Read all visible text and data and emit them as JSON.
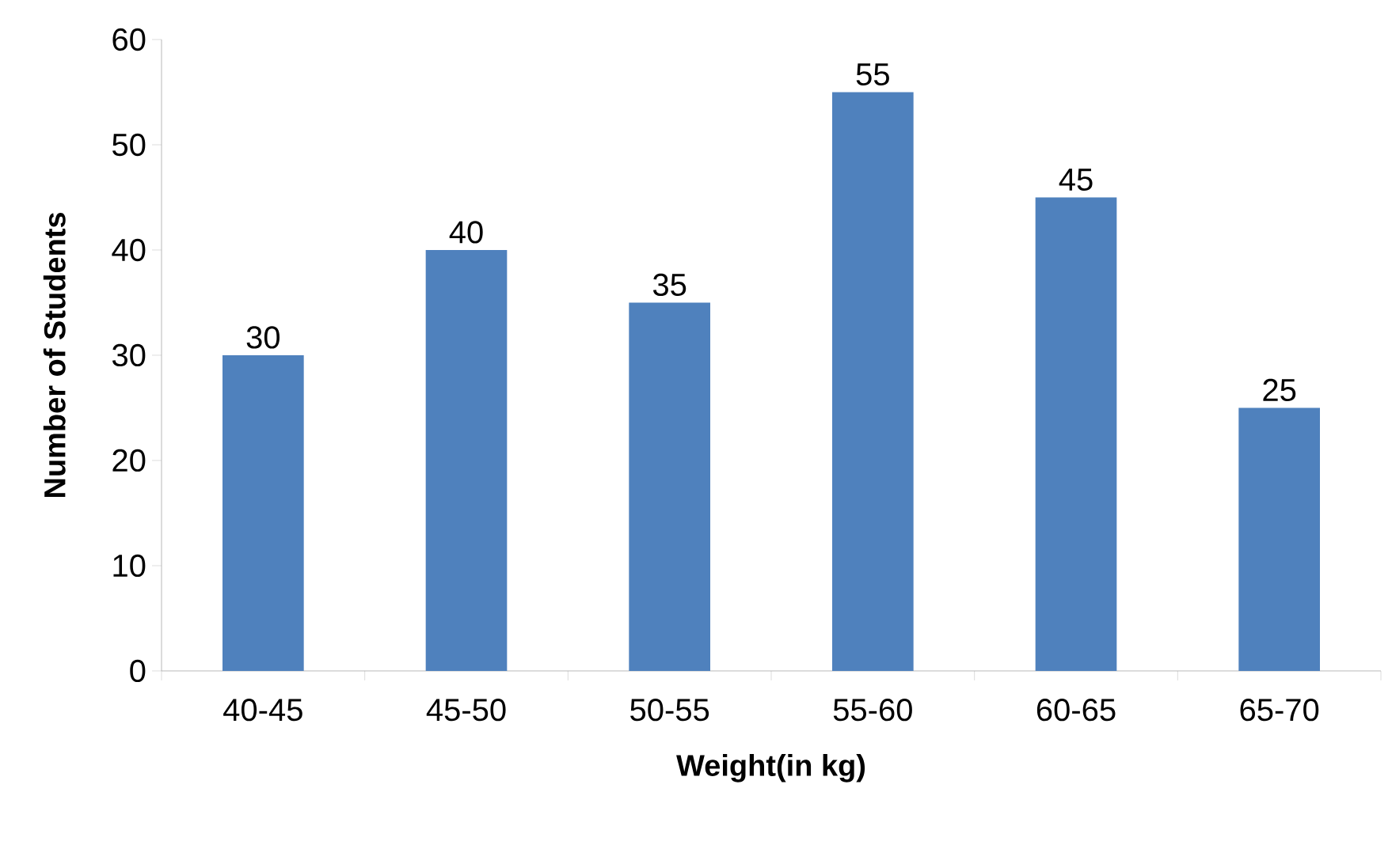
{
  "chart_data": {
    "type": "bar",
    "xlabel": "Weight(in kg)",
    "ylabel": "Number of Students",
    "categories": [
      "40-45",
      "45-50",
      "50-55",
      "55-60",
      "60-65",
      "65-70"
    ],
    "values": [
      30,
      40,
      35,
      55,
      45,
      25
    ],
    "color": "#4f81bd",
    "ylim": [
      0,
      60
    ],
    "yticks": [
      0,
      10,
      20,
      30,
      40,
      50,
      60
    ],
    "grid": false,
    "data_labels": true
  }
}
